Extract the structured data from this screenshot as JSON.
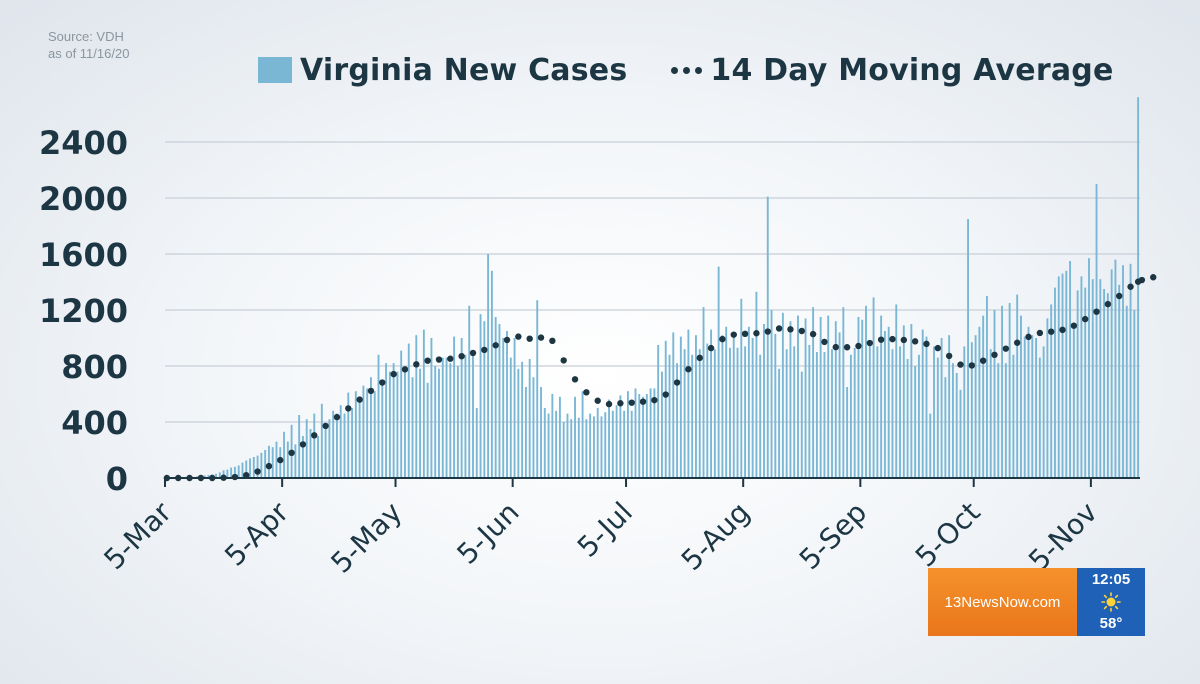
{
  "source": {
    "line1": "Source: VDH",
    "line2": "as of 11/16/20"
  },
  "legend": {
    "bars_label": "Virginia New Cases",
    "line_label": "14 Day Moving Average"
  },
  "colors": {
    "bars": "#7ab7d5",
    "line": "#1d3642",
    "grid": "#c8cfd6",
    "axis": "#1c3644"
  },
  "overlay": {
    "brand": "13NewsNow.com",
    "time": "12:05",
    "temp": "58°",
    "weather_icon": "sun-icon"
  },
  "chart_data": {
    "type": "bar",
    "title": "",
    "xlabel": "",
    "ylabel": "",
    "ylim": [
      0,
      2700
    ],
    "yticks": [
      0,
      400,
      800,
      1200,
      1600,
      2000,
      2400
    ],
    "ytick_labels": [
      "0",
      "400",
      "800",
      "1200",
      "1600",
      "2000",
      "2400"
    ],
    "xtick_labels": [
      "5-Mar",
      "5-Apr",
      "5-May",
      "5-Jun",
      "5-Jul",
      "5-Aug",
      "5-Sep",
      "5-Oct",
      "5-Nov"
    ],
    "xtick_dates": [
      "2020-03-05",
      "2020-04-05",
      "2020-05-05",
      "2020-06-05",
      "2020-07-05",
      "2020-08-05",
      "2020-09-05",
      "2020-10-05",
      "2020-11-05"
    ],
    "x_start": "2020-03-05",
    "x_end": "2020-11-16",
    "grid": true,
    "legend_position": "top",
    "series": [
      {
        "name": "Virginia New Cases",
        "type": "bar",
        "values": [
          0,
          0,
          0,
          0,
          1,
          3,
          5,
          8,
          12,
          15,
          18,
          22,
          25,
          30,
          40,
          55,
          60,
          75,
          80,
          90,
          110,
          125,
          140,
          150,
          160,
          180,
          200,
          230,
          220,
          260,
          220,
          330,
          260,
          380,
          240,
          450,
          300,
          420,
          350,
          460,
          300,
          530,
          360,
          420,
          480,
          460,
          520,
          460,
          610,
          500,
          620,
          560,
          660,
          640,
          720,
          620,
          880,
          680,
          820,
          760,
          820,
          760,
          910,
          760,
          960,
          720,
          1020,
          780,
          1060,
          680,
          1000,
          800,
          780,
          860,
          860,
          820,
          1010,
          800,
          1000,
          880,
          1230,
          900,
          500,
          1170,
          1120,
          1600,
          1480,
          1150,
          1100,
          1000,
          1050,
          860,
          1000,
          780,
          830,
          650,
          850,
          720,
          1270,
          650,
          500,
          460,
          600,
          480,
          580,
          400,
          460,
          420,
          580,
          430,
          620,
          420,
          460,
          440,
          500,
          440,
          470,
          560,
          480,
          520,
          590,
          480,
          620,
          480,
          640,
          600,
          580,
          600,
          640,
          640,
          950,
          760,
          980,
          880,
          1040,
          820,
          1010,
          920,
          1060,
          880,
          1020,
          920,
          1220,
          960,
          1060,
          920,
          1510,
          1020,
          1080,
          930,
          1040,
          930,
          1280,
          940,
          1080,
          1000,
          1330,
          880,
          1100,
          2010,
          1200,
          1030,
          780,
          1180,
          920,
          1120,
          940,
          1160,
          760,
          1140,
          950,
          1220,
          900,
          1150,
          900,
          1160,
          920,
          1120,
          1040,
          1220,
          650,
          880,
          930,
          1150,
          1130,
          1230,
          980,
          1290,
          940,
          1160,
          1050,
          1080,
          920,
          1240,
          940,
          1090,
          850,
          1100,
          800,
          880,
          1060,
          1010,
          460,
          940,
          860,
          1000,
          720,
          1020,
          820,
          750,
          630,
          940,
          1850,
          970,
          1020,
          1080,
          1160,
          1300,
          920,
          1200,
          820,
          1230,
          820,
          1250,
          880,
          1310,
          1160,
          1010,
          1080,
          1020,
          1000,
          860,
          940,
          1140,
          1240,
          1360,
          1440,
          1460,
          1480,
          1550,
          1100,
          1340,
          1440,
          1360,
          1570,
          1420,
          2100,
          1420,
          1350,
          1320,
          1490,
          1560,
          1380,
          1520,
          1230,
          1530,
          1200,
          2720
        ]
      },
      {
        "name": "14 Day Moving Average",
        "type": "line",
        "style": "dotted",
        "values": [
          0,
          0,
          0,
          0,
          0,
          0,
          0,
          0,
          0,
          0,
          0,
          0,
          0,
          0,
          1,
          2,
          3,
          5,
          7,
          10,
          14,
          20,
          28,
          36,
          46,
          58,
          70,
          85,
          99,
          113,
          128,
          144,
          160,
          180,
          200,
          220,
          240,
          262,
          284,
          305,
          328,
          350,
          372,
          392,
          415,
          435,
          455,
          475,
          497,
          518,
          540,
          560,
          580,
          602,
          622,
          642,
          662,
          682,
          702,
          722,
          742,
          756,
          766,
          776,
          790,
          802,
          812,
          822,
          832,
          838,
          842,
          844,
          846,
          848,
          850,
          852,
          856,
          862,
          870,
          878,
          886,
          893,
          898,
          906,
          915,
          925,
          936,
          948,
          962,
          975,
          986,
          996,
          1005,
          1010,
          1008,
          1003,
          995,
          990,
          994,
          1003,
          1012,
          1010,
          980,
          940,
          890,
          840,
          790,
          745,
          705,
          670,
          640,
          612,
          588,
          568,
          552,
          540,
          532,
          528,
          528,
          531,
          534,
          536,
          537,
          538,
          540,
          542,
          545,
          548,
          550,
          556,
          562,
          575,
          596,
          620,
          650,
          682,
          714,
          747,
          777,
          805,
          832,
          858,
          882,
          905,
          928,
          950,
          972,
          992,
          1008,
          1018,
          1024,
          1027,
          1029,
          1030,
          1031,
          1032,
          1034,
          1036,
          1040,
          1046,
          1054,
          1062,
          1068,
          1070,
          1067,
          1062,
          1058,
          1054,
          1050,
          1046,
          1040,
          1028,
          1010,
          990,
          972,
          955,
          942,
          935,
          932,
          932,
          934,
          937,
          940,
          943,
          948,
          955,
          964,
          973,
          982,
          988,
          992,
          993,
          992,
          990,
          988,
          986,
          984,
          980,
          976,
          972,
          966,
          958,
          950,
          940,
          928,
          912,
          894,
          872,
          848,
          826,
          810,
          802,
          800,
          804,
          812,
          824,
          838,
          852,
          866,
          880,
          895,
          910,
          924,
          938,
          952,
          966,
          980,
          994,
          1008,
          1020,
          1030,
          1036,
          1040,
          1043,
          1045,
          1048,
          1052,
          1058,
          1066,
          1076,
          1088,
          1102,
          1118,
          1135,
          1152,
          1170,
          1188,
          1206,
          1224,
          1242,
          1260,
          1280,
          1300,
          1322,
          1344,
          1366,
          1386,
          1402,
          1414,
          1422,
          1428,
          1434,
          1440
        ]
      }
    ]
  }
}
